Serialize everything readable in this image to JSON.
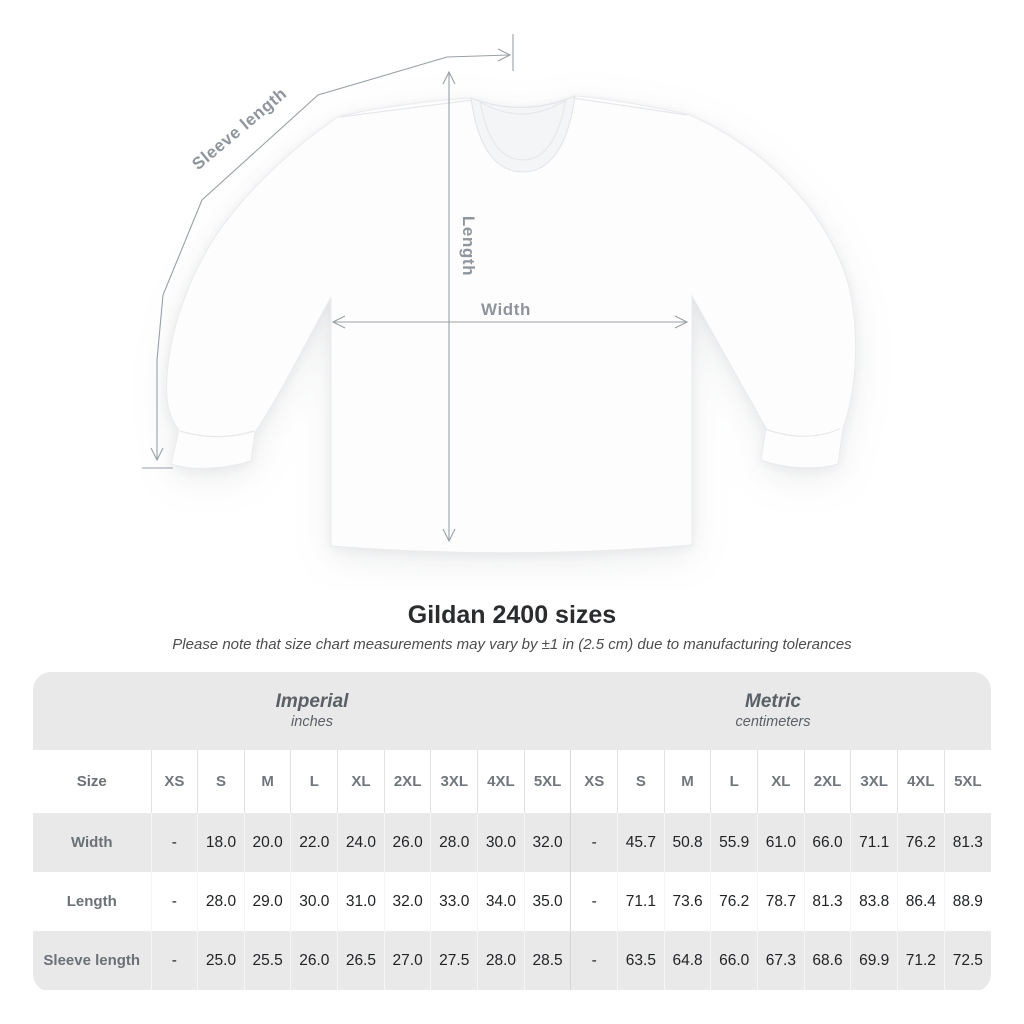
{
  "diagram": {
    "sleeve_label": "Sleeve length",
    "length_label": "Length",
    "width_label": "Width"
  },
  "title": "Gildan 2400 sizes",
  "subtitle": "Please note that size chart measurements may vary by ±1 in (2.5 cm) due to manufacturing tolerances",
  "table": {
    "size_label": "Size",
    "groups": [
      {
        "name": "Imperial",
        "unit": "inches"
      },
      {
        "name": "Metric",
        "unit": "centimeters"
      }
    ],
    "sizes": [
      "XS",
      "S",
      "M",
      "L",
      "XL",
      "2XL",
      "3XL",
      "4XL",
      "5XL"
    ],
    "rows": [
      {
        "label": "Width",
        "imperial": [
          "-",
          "18.0",
          "20.0",
          "22.0",
          "24.0",
          "26.0",
          "28.0",
          "30.0",
          "32.0"
        ],
        "metric": [
          "-",
          "45.7",
          "50.8",
          "55.9",
          "61.0",
          "66.0",
          "71.1",
          "76.2",
          "81.3"
        ]
      },
      {
        "label": "Length",
        "imperial": [
          "-",
          "28.0",
          "29.0",
          "30.0",
          "31.0",
          "32.0",
          "33.0",
          "34.0",
          "35.0"
        ],
        "metric": [
          "-",
          "71.1",
          "73.6",
          "76.2",
          "78.7",
          "81.3",
          "83.8",
          "86.4",
          "88.9"
        ]
      },
      {
        "label": "Sleeve length",
        "imperial": [
          "-",
          "25.0",
          "25.5",
          "26.0",
          "26.5",
          "27.0",
          "27.5",
          "28.0",
          "28.5"
        ],
        "metric": [
          "-",
          "63.5",
          "64.8",
          "66.0",
          "67.3",
          "68.6",
          "69.9",
          "71.2",
          "72.5"
        ]
      }
    ]
  },
  "colors": {
    "header_bg": "#e9e9ea",
    "stripe_bg": "#e9e9ea",
    "measure_line": "#9aa0a6",
    "measure_label": "#8f959c",
    "value_text": "#212325",
    "label_text": "#6c7177",
    "title_text": "#2b2c2e"
  }
}
